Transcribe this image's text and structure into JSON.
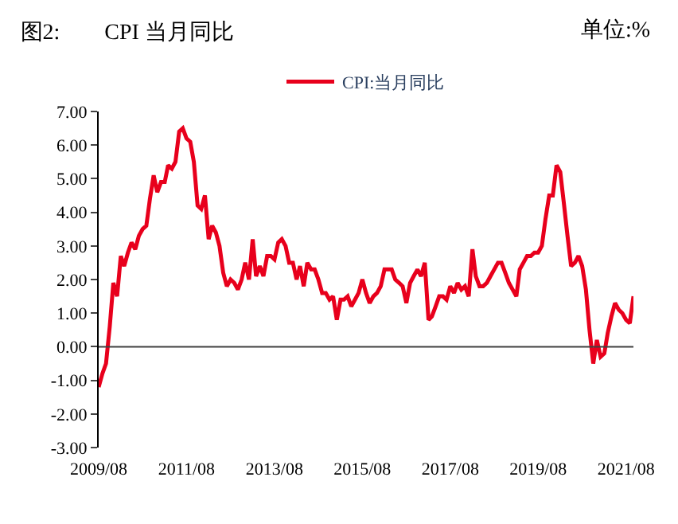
{
  "chart_data": {
    "type": "line",
    "title": "图2:　　CPI 当月同比",
    "annotations": [
      "单位:%"
    ],
    "legend": "top",
    "ref_lines": [
      {
        "axis": "y",
        "value": 0,
        "color": "#404040"
      }
    ],
    "marker": "none",
    "line_style": "solid",
    "xlim": [
      "2009-08",
      "2021-10"
    ],
    "xticks": [
      {
        "value": "2009-08",
        "label": "2009/08"
      },
      {
        "value": "2011-08",
        "label": "2011/08"
      },
      {
        "value": "2013-08",
        "label": "2013/08"
      },
      {
        "value": "2015-08",
        "label": "2015/08"
      },
      {
        "value": "2017-08",
        "label": "2017/08"
      },
      {
        "value": "2019-08",
        "label": "2019/08"
      },
      {
        "value": "2021-08",
        "label": "2021/08"
      }
    ],
    "ylim": [
      -3,
      7
    ],
    "yticks": [
      {
        "value": -3,
        "label": "-3.00"
      },
      {
        "value": -2,
        "label": "-2.00"
      },
      {
        "value": -1,
        "label": "-1.00"
      },
      {
        "value": 0,
        "label": "0.00"
      },
      {
        "value": 1,
        "label": "1.00"
      },
      {
        "value": 2,
        "label": "2.00"
      },
      {
        "value": 3,
        "label": "3.00"
      },
      {
        "value": 4,
        "label": "4.00"
      },
      {
        "value": 5,
        "label": "5.00"
      },
      {
        "value": 6,
        "label": "6.00"
      },
      {
        "value": 7,
        "label": "7.00"
      }
    ],
    "x": [
      "2009-08",
      "2009-09",
      "2009-10",
      "2009-11",
      "2009-12",
      "2010-01",
      "2010-02",
      "2010-03",
      "2010-04",
      "2010-05",
      "2010-06",
      "2010-07",
      "2010-08",
      "2010-09",
      "2010-10",
      "2010-11",
      "2010-12",
      "2011-01",
      "2011-02",
      "2011-03",
      "2011-04",
      "2011-05",
      "2011-06",
      "2011-07",
      "2011-08",
      "2011-09",
      "2011-10",
      "2011-11",
      "2011-12",
      "2012-01",
      "2012-02",
      "2012-03",
      "2012-04",
      "2012-05",
      "2012-06",
      "2012-07",
      "2012-08",
      "2012-09",
      "2012-10",
      "2012-11",
      "2012-12",
      "2013-01",
      "2013-02",
      "2013-03",
      "2013-04",
      "2013-05",
      "2013-06",
      "2013-07",
      "2013-08",
      "2013-09",
      "2013-10",
      "2013-11",
      "2013-12",
      "2014-01",
      "2014-02",
      "2014-03",
      "2014-04",
      "2014-05",
      "2014-06",
      "2014-07",
      "2014-08",
      "2014-09",
      "2014-10",
      "2014-11",
      "2014-12",
      "2015-01",
      "2015-02",
      "2015-03",
      "2015-04",
      "2015-05",
      "2015-06",
      "2015-07",
      "2015-08",
      "2015-09",
      "2015-10",
      "2015-11",
      "2015-12",
      "2016-01",
      "2016-02",
      "2016-03",
      "2016-04",
      "2016-05",
      "2016-06",
      "2016-07",
      "2016-08",
      "2016-09",
      "2016-10",
      "2016-11",
      "2016-12",
      "2017-01",
      "2017-02",
      "2017-03",
      "2017-04",
      "2017-05",
      "2017-06",
      "2017-07",
      "2017-08",
      "2017-09",
      "2017-10",
      "2017-11",
      "2017-12",
      "2018-01",
      "2018-02",
      "2018-03",
      "2018-04",
      "2018-05",
      "2018-06",
      "2018-07",
      "2018-08",
      "2018-09",
      "2018-10",
      "2018-11",
      "2018-12",
      "2019-01",
      "2019-02",
      "2019-03",
      "2019-04",
      "2019-05",
      "2019-06",
      "2019-07",
      "2019-08",
      "2019-09",
      "2019-10",
      "2019-11",
      "2019-12",
      "2020-01",
      "2020-02",
      "2020-03",
      "2020-04",
      "2020-05",
      "2020-06",
      "2020-07",
      "2020-08",
      "2020-09",
      "2020-10",
      "2020-11",
      "2020-12",
      "2021-01",
      "2021-02",
      "2021-03",
      "2021-04",
      "2021-05",
      "2021-06",
      "2021-07",
      "2021-08",
      "2021-09",
      "2021-10"
    ],
    "series": [
      {
        "name": "CPI:当月同比",
        "color": "#e8001c",
        "values": [
          -1.2,
          -0.8,
          -0.5,
          0.6,
          1.9,
          1.5,
          2.7,
          2.4,
          2.8,
          3.1,
          2.9,
          3.3,
          3.5,
          3.6,
          4.4,
          5.1,
          4.6,
          4.9,
          4.9,
          5.4,
          5.3,
          5.5,
          6.4,
          6.5,
          6.2,
          6.1,
          5.5,
          4.2,
          4.1,
          4.5,
          3.2,
          3.6,
          3.4,
          3.0,
          2.2,
          1.8,
          2.0,
          1.9,
          1.7,
          2.0,
          2.5,
          2.0,
          3.2,
          2.1,
          2.4,
          2.1,
          2.7,
          2.7,
          2.6,
          3.1,
          3.2,
          3.0,
          2.5,
          2.5,
          2.0,
          2.4,
          1.8,
          2.5,
          2.3,
          2.3,
          2.0,
          1.6,
          1.6,
          1.4,
          1.5,
          0.8,
          1.4,
          1.4,
          1.5,
          1.2,
          1.4,
          1.6,
          2.0,
          1.6,
          1.3,
          1.5,
          1.6,
          1.8,
          2.3,
          2.3,
          2.3,
          2.0,
          1.9,
          1.8,
          1.3,
          1.9,
          2.1,
          2.3,
          2.1,
          2.5,
          0.8,
          0.9,
          1.2,
          1.5,
          1.5,
          1.4,
          1.8,
          1.6,
          1.9,
          1.7,
          1.8,
          1.5,
          2.9,
          2.1,
          1.8,
          1.8,
          1.9,
          2.1,
          2.3,
          2.5,
          2.5,
          2.2,
          1.9,
          1.7,
          1.5,
          2.3,
          2.5,
          2.7,
          2.7,
          2.8,
          2.8,
          3.0,
          3.8,
          4.5,
          4.5,
          5.4,
          5.2,
          4.3,
          3.3,
          2.4,
          2.5,
          2.7,
          2.4,
          1.7,
          0.5,
          -0.5,
          0.2,
          -0.3,
          -0.2,
          0.4,
          0.9,
          1.3,
          1.1,
          1.0,
          0.8,
          0.7,
          1.5
        ]
      }
    ]
  }
}
